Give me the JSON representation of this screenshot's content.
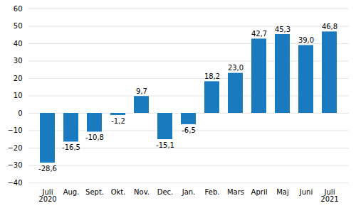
{
  "chart_data": {
    "type": "bar",
    "categories": [
      "Juli\n2020",
      "Aug.",
      "Sept.",
      "Okt.",
      "Nov.",
      "Dec.",
      "Jan.",
      "Feb.",
      "Mars",
      "April",
      "Maj",
      "Juni",
      "Juli\n2021"
    ],
    "values": [
      -28.6,
      -16.5,
      -10.8,
      -1.2,
      9.7,
      -15.1,
      -6.5,
      18.2,
      23.0,
      42.7,
      45.3,
      39.0,
      46.8
    ],
    "value_labels": [
      "-28,6",
      "-16,5",
      "-10,8",
      "-1,2",
      "9,7",
      "-15,1",
      "-6,5",
      "18,2",
      "23,0",
      "42,7",
      "45,3",
      "39,0",
      "46,8"
    ],
    "color": "#1a7abf",
    "ylim": [
      -40,
      60
    ],
    "yticks": [
      -40,
      -30,
      -20,
      -10,
      0,
      10,
      20,
      30,
      40,
      50,
      60
    ],
    "grid": true,
    "data_labels": true
  }
}
